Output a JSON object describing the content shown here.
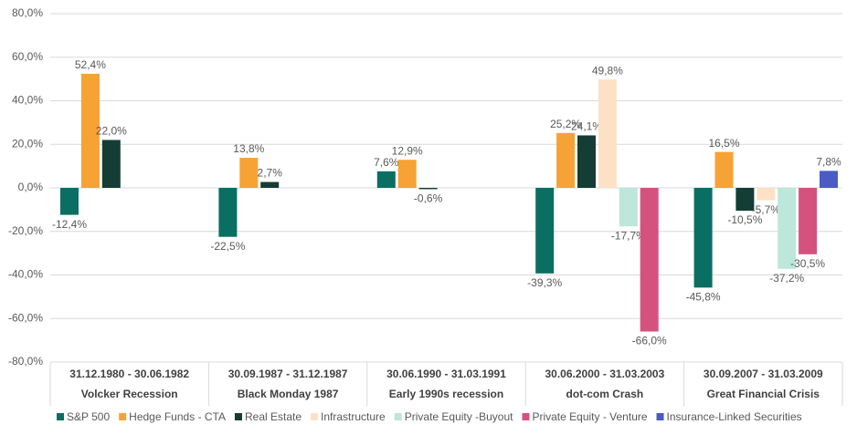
{
  "chart_data": {
    "type": "bar",
    "categories": [
      [
        "31.12.1980 - 30.06.1982",
        "Volcker Recession"
      ],
      [
        "30.09.1987 - 31.12.1987",
        "Black Monday 1987"
      ],
      [
        "30.06.1990 - 31.03.1991",
        "Early 1990s recession"
      ],
      [
        "30.06.2000 - 31.03.2003",
        "dot-com Crash"
      ],
      [
        "30.09.2007 - 31.03.2009",
        "Great Financial Crisis"
      ]
    ],
    "series": [
      {
        "name": "S&P 500",
        "color": "#0b6e62",
        "values": [
          -12.4,
          -22.5,
          7.6,
          -39.3,
          -45.8
        ],
        "value_labels": [
          "-12,4%",
          "-22,5%",
          "7,6%",
          "-39,3%",
          "-45,8%"
        ]
      },
      {
        "name": "Hedge Funds - CTA",
        "color": "#f7a235",
        "values": [
          52.4,
          13.8,
          12.9,
          25.2,
          16.5
        ],
        "value_labels": [
          "52,4%",
          "13,8%",
          "12,9%",
          "25,2%",
          "16,5%"
        ]
      },
      {
        "name": "Real Estate",
        "color": "#143d35",
        "values": [
          22.0,
          2.7,
          -0.6,
          24.1,
          -10.5
        ],
        "value_labels": [
          "22,0%",
          "2,7%",
          "-0,6%",
          "24,1%",
          "-10,5%"
        ]
      },
      {
        "name": "Infrastructure",
        "color": "#fde1c6",
        "values": [
          null,
          null,
          null,
          49.8,
          -5.7
        ],
        "value_labels": [
          null,
          null,
          null,
          "49,8%",
          "-5,7%"
        ]
      },
      {
        "name": "Private Equity -Buyout",
        "color": "#bce7da",
        "values": [
          null,
          null,
          null,
          -17.7,
          -37.2
        ],
        "value_labels": [
          null,
          null,
          null,
          "-17,7%",
          "-37,2%"
        ]
      },
      {
        "name": "Private Equity - Venture",
        "color": "#d6527e",
        "values": [
          null,
          null,
          null,
          -66.0,
          -30.5
        ],
        "value_labels": [
          null,
          null,
          null,
          "-66,0%",
          "-30,5%"
        ]
      },
      {
        "name": "Insurance-Linked Securities",
        "color": "#4a5bc6",
        "values": [
          null,
          null,
          null,
          null,
          7.8
        ],
        "value_labels": [
          null,
          null,
          null,
          null,
          "7,8%"
        ]
      }
    ],
    "ylim": [
      -80,
      80
    ],
    "yticks": [
      {
        "value": -80,
        "label": "-80,0%"
      },
      {
        "value": -60,
        "label": "-60,0%"
      },
      {
        "value": -40,
        "label": "-40,0%"
      },
      {
        "value": -20,
        "label": "-20,0%"
      },
      {
        "value": 0,
        "label": "0,0%"
      },
      {
        "value": 20,
        "label": "20,0%"
      },
      {
        "value": 40,
        "label": "40,0%"
      },
      {
        "value": 60,
        "label": "60,0%"
      },
      {
        "value": 80,
        "label": "80,0%"
      }
    ],
    "grid": true,
    "legend": "bottom"
  }
}
